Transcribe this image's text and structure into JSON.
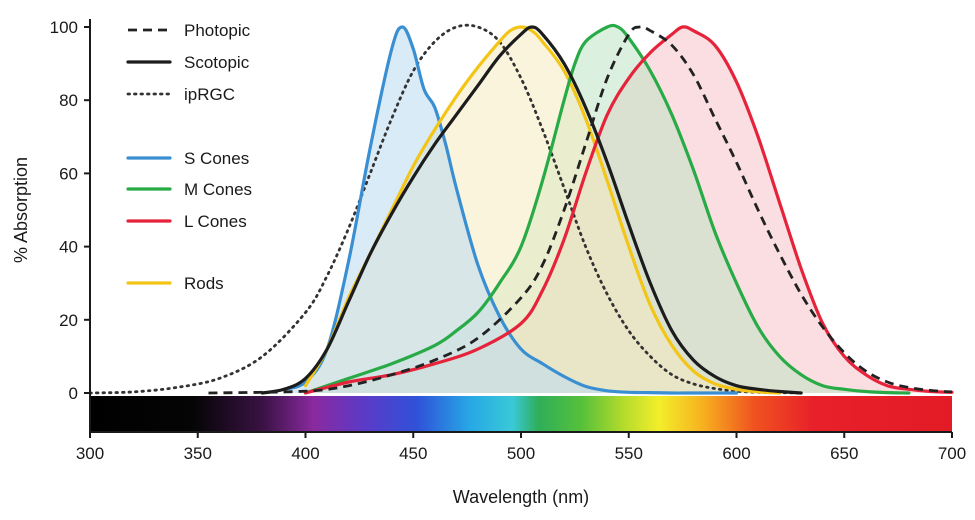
{
  "chart_data": {
    "type": "area",
    "title": "",
    "xlabel": "Wavelength (nm)",
    "ylabel": "% Absorption",
    "xlim": [
      300,
      700
    ],
    "ylim": [
      0,
      100
    ],
    "xticks": [
      300,
      350,
      400,
      450,
      500,
      550,
      600,
      650,
      700
    ],
    "yticks": [
      0,
      20,
      40,
      60,
      80,
      100
    ],
    "grid": false,
    "legend_position": "top-left",
    "spectrum_bar": true,
    "series": [
      {
        "name": "Photopic",
        "style": "dashed",
        "color": "#222222",
        "fill": null,
        "x": [
          355,
          400,
          420,
          440,
          460,
          480,
          500,
          510,
          520,
          530,
          540,
          550,
          555,
          560,
          570,
          580,
          590,
          600,
          610,
          620,
          630,
          640,
          650,
          660,
          670,
          680,
          690,
          700
        ],
        "y": [
          0,
          0.5,
          2,
          5,
          9,
          15,
          26,
          35,
          50,
          68,
          86,
          98,
          100,
          99,
          95,
          87,
          75,
          63,
          50,
          38,
          27,
          18,
          11,
          6,
          3,
          1.5,
          0.7,
          0.3
        ]
      },
      {
        "name": "Scotopic",
        "style": "solid",
        "color": "#1c1c1c",
        "fill": null,
        "x": [
          380,
          390,
          400,
          410,
          420,
          430,
          440,
          450,
          460,
          470,
          480,
          490,
          500,
          505,
          510,
          520,
          530,
          540,
          550,
          560,
          570,
          580,
          590,
          600,
          610,
          620,
          630
        ],
        "y": [
          0,
          1,
          4,
          12,
          25,
          38,
          49,
          59,
          68,
          76,
          84,
          92,
          98,
          100,
          98,
          90,
          78,
          63,
          46,
          30,
          17,
          9,
          4.5,
          2,
          1,
          0.4,
          0
        ]
      },
      {
        "name": "ipRGC",
        "style": "dotted",
        "color": "#333333",
        "fill": null,
        "x": [
          300,
          320,
          340,
          360,
          380,
          400,
          410,
          420,
          430,
          440,
          450,
          460,
          470,
          480,
          490,
          500,
          510,
          520,
          530,
          540,
          550,
          560,
          570,
          580,
          590,
          600,
          610,
          620,
          630
        ],
        "y": [
          0,
          0.3,
          1.5,
          4,
          10,
          22,
          32,
          45,
          60,
          75,
          88,
          96,
          100,
          100,
          96,
          86,
          72,
          56,
          40,
          27,
          17,
          10,
          5,
          2.5,
          1.2,
          0.5,
          0.2,
          0.1,
          0
        ]
      },
      {
        "name": "S Cones",
        "style": "solid",
        "color": "#3a8fd3",
        "fill": "#bcdaf2",
        "x": [
          390,
          400,
          410,
          420,
          430,
          440,
          445,
          450,
          455,
          460,
          465,
          470,
          480,
          490,
          500,
          510,
          520,
          530,
          540,
          550,
          560,
          570,
          580,
          600
        ],
        "y": [
          1,
          3,
          12,
          36,
          67,
          94,
          100,
          94,
          83,
          78,
          68,
          56,
          35,
          21,
          12,
          8,
          4.5,
          1.8,
          0.6,
          0.2,
          0.1,
          0,
          0,
          0
        ]
      },
      {
        "name": "M Cones",
        "style": "solid",
        "color": "#28ab46",
        "fill": "#bfe4c4",
        "x": [
          400,
          420,
          440,
          460,
          470,
          480,
          490,
          500,
          510,
          520,
          525,
          530,
          540,
          545,
          550,
          560,
          570,
          580,
          590,
          600,
          610,
          620,
          630,
          640,
          650,
          660,
          670,
          680
        ],
        "y": [
          0,
          4,
          8,
          13,
          17,
          22,
          30,
          40,
          58,
          80,
          90,
          96,
          100,
          100,
          97,
          88,
          76,
          61,
          44,
          30,
          18,
          10,
          5,
          2,
          1,
          0.4,
          0.1,
          0
        ]
      },
      {
        "name": "L Cones",
        "style": "solid",
        "color": "#e5233b",
        "fill": "#f6c2c8",
        "x": [
          400,
          420,
          440,
          460,
          480,
          500,
          510,
          520,
          530,
          540,
          550,
          560,
          570,
          575,
          580,
          590,
          600,
          610,
          620,
          630,
          640,
          650,
          660,
          670,
          680,
          690,
          700
        ],
        "y": [
          0,
          3,
          5,
          8,
          12,
          19,
          28,
          42,
          60,
          76,
          86,
          93,
          98,
          100,
          99,
          95,
          85,
          70,
          52,
          34,
          19,
          10,
          5,
          2,
          1,
          0.4,
          0.2
        ]
      },
      {
        "name": "Rods",
        "style": "solid",
        "color": "#f2c516",
        "fill": "#f5ebbf",
        "x": [
          400,
          410,
          420,
          430,
          440,
          450,
          460,
          470,
          480,
          490,
          495,
          500,
          505,
          510,
          520,
          530,
          540,
          550,
          560,
          570,
          580,
          590,
          600,
          610,
          620
        ],
        "y": [
          2,
          12,
          26,
          38,
          50,
          62,
          72,
          81,
          89,
          96,
          99,
          100,
          99,
          96,
          88,
          75,
          58,
          40,
          24,
          13,
          6,
          2.5,
          1,
          0.3,
          0
        ]
      }
    ]
  }
}
